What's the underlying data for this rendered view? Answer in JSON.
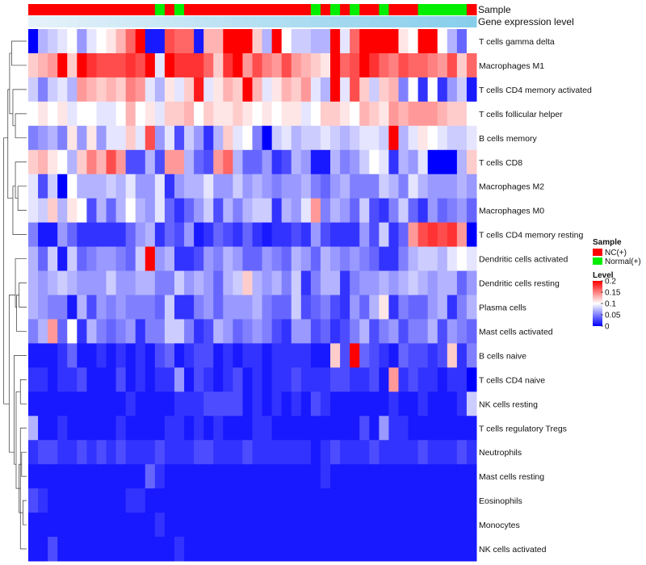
{
  "chart_data": {
    "type": "heatmap",
    "annotation_labels": {
      "sample": "Sample",
      "gene": "Gene expression level"
    },
    "legend": {
      "sample_title": "Sample",
      "sample_entries": [
        {
          "label": "NC(+)",
          "color": "#FF0000"
        },
        {
          "label": "Normal(+)",
          "color": "#00EE00"
        }
      ],
      "level_title": "Level",
      "level_ticks": [
        {
          "label": "0.2",
          "value": 0.2
        },
        {
          "label": "0.15",
          "value": 0.15
        },
        {
          "label": "0.1",
          "value": 0.1
        },
        {
          "label": "0.05",
          "value": 0.05
        },
        {
          "label": "0",
          "value": 0
        }
      ],
      "level_range": [
        0,
        0.2
      ],
      "placement": "right"
    },
    "colors": {
      "low": "#0000FF",
      "mid": "#FFFFFF",
      "high": "#FF0000",
      "nc": "#FF0000",
      "normal": "#00EE00",
      "gene_low": "#E6F2FA",
      "gene_high": "#87CEEB"
    },
    "sample_groups": [
      "NC",
      "NC",
      "NC",
      "NC",
      "NC",
      "NC",
      "NC",
      "NC",
      "NC",
      "NC",
      "NC",
      "NC",
      "NC",
      "Normal",
      "NC",
      "Normal",
      "NC",
      "NC",
      "NC",
      "NC",
      "NC",
      "NC",
      "NC",
      "NC",
      "NC",
      "NC",
      "NC",
      "NC",
      "NC",
      "Normal",
      "NC",
      "Normal",
      "NC",
      "Normal",
      "NC",
      "NC",
      "Normal",
      "NC",
      "NC",
      "NC",
      "Normal",
      "Normal",
      "Normal",
      "Normal",
      "Normal",
      "NC"
    ],
    "rows": [
      "T cells gamma delta",
      "Macrophages M1",
      "T cells CD4 memory activated",
      "T cells follicular helper",
      "B cells memory",
      "T cells CD8",
      "Macrophages M2",
      "Macrophages M0",
      "T cells CD4 memory resting",
      "Dendritic cells activated",
      "Dendritic cells resting",
      "Plasma cells",
      "Mast cells activated",
      "B cells naive",
      "T cells CD4 naive",
      "NK cells resting",
      "T cells regulatory  Tregs",
      "Neutrophils",
      "Mast cells resting",
      "Eosinophils",
      "Monocytes",
      "NK cells activated"
    ],
    "values": [
      [
        0,
        0.07,
        0.08,
        0.09,
        0.1,
        0.06,
        0.09,
        0.1,
        0.11,
        0.13,
        0.16,
        0.2,
        0.01,
        0.01,
        0.17,
        0.16,
        0.16,
        0.01,
        0.13,
        0.13,
        0.2,
        0.2,
        0.2,
        0.12,
        0.07,
        0.2,
        0.1,
        0.08,
        0.08,
        0.07,
        0.07,
        0.2,
        0.09,
        0.16,
        0.2,
        0.2,
        0.2,
        0.2,
        0.11,
        0.1,
        0.2,
        0.2,
        0.1,
        0.07,
        0.04,
        0.1
      ],
      [
        0.12,
        0.13,
        0.14,
        0.2,
        0.12,
        0.2,
        0.18,
        0.17,
        0.17,
        0.17,
        0.18,
        0.17,
        0.2,
        0.09,
        0.2,
        0.18,
        0.18,
        0.18,
        0.16,
        0.12,
        0.18,
        0.2,
        0.14,
        0.17,
        0.15,
        0.14,
        0.17,
        0.14,
        0.13,
        0.12,
        0.11,
        0.2,
        0.16,
        0.17,
        0.2,
        0.18,
        0.16,
        0.15,
        0.17,
        0.16,
        0.16,
        0.15,
        0.14,
        0.17,
        0.12,
        0.16
      ],
      [
        0.08,
        0.05,
        0.08,
        0.09,
        0.07,
        0.14,
        0.13,
        0.12,
        0.13,
        0.12,
        0.15,
        0.14,
        0.09,
        0.07,
        0.11,
        0.09,
        0.12,
        0.19,
        0.09,
        0.11,
        0.13,
        0.12,
        0.2,
        0.13,
        0.09,
        0.11,
        0.13,
        0.12,
        0.14,
        0.09,
        0.07,
        0.2,
        0.09,
        0.17,
        0.12,
        0.08,
        0.12,
        0.13,
        0.05,
        0.1,
        0.02,
        0.1,
        0.02,
        0.06,
        0.08,
        0.01
      ],
      [
        0.1,
        0.11,
        0.1,
        0.11,
        0.09,
        0.1,
        0.1,
        0.09,
        0.09,
        0.1,
        0.13,
        0.1,
        0.11,
        0.09,
        0.12,
        0.12,
        0.13,
        0.1,
        0.12,
        0.11,
        0.11,
        0.12,
        0.11,
        0.1,
        0.11,
        0.1,
        0.11,
        0.11,
        0.09,
        0.1,
        0.12,
        0.12,
        0.11,
        0.1,
        0.13,
        0.12,
        0.11,
        0.14,
        0.13,
        0.14,
        0.14,
        0.14,
        0.13,
        0.12,
        0.12,
        0.1
      ],
      [
        0.05,
        0.06,
        0.07,
        0.05,
        0.11,
        0.06,
        0.11,
        0.06,
        0.09,
        0.09,
        0.12,
        0.09,
        0.17,
        0.06,
        0.09,
        0.03,
        0.08,
        0.06,
        0.02,
        0.07,
        0.12,
        0.09,
        0.1,
        0.05,
        0.0,
        0.08,
        0.09,
        0.07,
        0.08,
        0.08,
        0.09,
        0.08,
        0.07,
        0.08,
        0.09,
        0.09,
        0.08,
        0.2,
        0.07,
        0.09,
        0.11,
        0.1,
        0.09,
        0.08,
        0.08,
        0.09
      ],
      [
        0.12,
        0.13,
        0.11,
        0.1,
        0.07,
        0.12,
        0.15,
        0.13,
        0.17,
        0.14,
        0.03,
        0.03,
        0.07,
        0.03,
        0.14,
        0.14,
        0.07,
        0.04,
        0.03,
        0.14,
        0.16,
        0.07,
        0.04,
        0.04,
        0.06,
        0.02,
        0.03,
        0.07,
        0.06,
        0.01,
        0.01,
        0.07,
        0.05,
        0.06,
        0.08,
        0.1,
        0.09,
        0.02,
        0.07,
        0.06,
        0.09,
        0.0,
        0.0,
        0.0,
        0.07,
        0.12
      ],
      [
        0.09,
        0.03,
        0.08,
        0.0,
        0.1,
        0.07,
        0.07,
        0.07,
        0.08,
        0.07,
        0.09,
        0.06,
        0.06,
        0.09,
        0.02,
        0.06,
        0.07,
        0.07,
        0.09,
        0.06,
        0.06,
        0.08,
        0.06,
        0.07,
        0.06,
        0.05,
        0.06,
        0.06,
        0.07,
        0.05,
        0.04,
        0.06,
        0.07,
        0.05,
        0.05,
        0.05,
        0.08,
        0.07,
        0.05,
        0.09,
        0.07,
        0.06,
        0.06,
        0.06,
        0.07,
        0.06
      ],
      [
        0.09,
        0.08,
        0.12,
        0.07,
        0.11,
        0.1,
        0.03,
        0.07,
        0.04,
        0.07,
        0.1,
        0.07,
        0.06,
        0.09,
        0.04,
        0.02,
        0.04,
        0.06,
        0.08,
        0.03,
        0.07,
        0.05,
        0.07,
        0.08,
        0.08,
        0.02,
        0.07,
        0.06,
        0.09,
        0.14,
        0.05,
        0.07,
        0.06,
        0.04,
        0.08,
        0.03,
        0.02,
        0.05,
        0.08,
        0.04,
        0.02,
        0.06,
        0.04,
        0.05,
        0.06,
        0.04
      ],
      [
        0.05,
        0.01,
        0.01,
        0.06,
        0.04,
        0.02,
        0.02,
        0.02,
        0.02,
        0.02,
        0.04,
        0.06,
        0.07,
        0.02,
        0.04,
        0.03,
        0.06,
        0.01,
        0.02,
        0.04,
        0.03,
        0.02,
        0.04,
        0.02,
        0.01,
        0.02,
        0.02,
        0.03,
        0.02,
        0.06,
        0.03,
        0.02,
        0.02,
        0.02,
        0.06,
        0.03,
        0.08,
        0.02,
        0.04,
        0.14,
        0.17,
        0.18,
        0.17,
        0.18,
        0.14,
        0.0
      ],
      [
        0.07,
        0.04,
        0.08,
        0.01,
        0.08,
        0.04,
        0.05,
        0.06,
        0.06,
        0.05,
        0.04,
        0.08,
        0.2,
        0.06,
        0.07,
        0.02,
        0.02,
        0.03,
        0.06,
        0.05,
        0.07,
        0.06,
        0.04,
        0.04,
        0.06,
        0.05,
        0.04,
        0.07,
        0.06,
        0.04,
        0.07,
        0.06,
        0.05,
        0.06,
        0.05,
        0.04,
        0.02,
        0.02,
        0.05,
        0.07,
        0.08,
        0.08,
        0.07,
        0.09,
        0.1,
        0.09
      ],
      [
        0.07,
        0.06,
        0.07,
        0.08,
        0.07,
        0.06,
        0.06,
        0.06,
        0.08,
        0.06,
        0.06,
        0.07,
        0.07,
        0.05,
        0.05,
        0.08,
        0.06,
        0.07,
        0.06,
        0.04,
        0.07,
        0.08,
        0.12,
        0.07,
        0.06,
        0.07,
        0.05,
        0.08,
        0.02,
        0.05,
        0.07,
        0.07,
        0.02,
        0.05,
        0.06,
        0.06,
        0.07,
        0.06,
        0.07,
        0.08,
        0.07,
        0.06,
        0.07,
        0.07,
        0.04,
        0.06
      ],
      [
        0.07,
        0.06,
        0.05,
        0.05,
        0.01,
        0.07,
        0.03,
        0.06,
        0.05,
        0.06,
        0.05,
        0.05,
        0.05,
        0.04,
        0.08,
        0.02,
        0.02,
        0.05,
        0.06,
        0.04,
        0.06,
        0.06,
        0.06,
        0.07,
        0.05,
        0.04,
        0.04,
        0.08,
        0.03,
        0.04,
        0.05,
        0.03,
        0.02,
        0.06,
        0.04,
        0.07,
        0.11,
        0.02,
        0.05,
        0.04,
        0.04,
        0.06,
        0.07,
        0.02,
        0.05,
        0.07
      ],
      [
        0.05,
        0.07,
        0.14,
        0.04,
        0.1,
        0.02,
        0.07,
        0.05,
        0.04,
        0.05,
        0.06,
        0.02,
        0.05,
        0.05,
        0.08,
        0.08,
        0.05,
        0.02,
        0.03,
        0.07,
        0.06,
        0.04,
        0.05,
        0.06,
        0.05,
        0.03,
        0.02,
        0.06,
        0.06,
        0.03,
        0.04,
        0.02,
        0.03,
        0.05,
        0.07,
        0.03,
        0.05,
        0.06,
        0.03,
        0.05,
        0.05,
        0.07,
        0.03,
        0.06,
        0.05,
        0.04
      ],
      [
        0.01,
        0.01,
        0.01,
        0.02,
        0.04,
        0.01,
        0.01,
        0.02,
        0.01,
        0.02,
        0.01,
        0.02,
        0.01,
        0.03,
        0.04,
        0.01,
        0.02,
        0.03,
        0.03,
        0.01,
        0.02,
        0.01,
        0.02,
        0.02,
        0.01,
        0.02,
        0.02,
        0.02,
        0.02,
        0.01,
        0.01,
        0.12,
        0.03,
        0.2,
        0.04,
        0.03,
        0.02,
        0.01,
        0.04,
        0.03,
        0.03,
        0.02,
        0.03,
        0.12,
        0.02,
        0.05
      ],
      [
        0.02,
        0.02,
        0.01,
        0.02,
        0.02,
        0.03,
        0.01,
        0.01,
        0.01,
        0.03,
        0.01,
        0.02,
        0.01,
        0.02,
        0.02,
        0.06,
        0.01,
        0.03,
        0.02,
        0.01,
        0.02,
        0.03,
        0.01,
        0.02,
        0.01,
        0.02,
        0.02,
        0.03,
        0.02,
        0.02,
        0.02,
        0.03,
        0.03,
        0.02,
        0.02,
        0.03,
        0.01,
        0.14,
        0.02,
        0.03,
        0.02,
        0.02,
        0.01,
        0.02,
        0.02,
        0.0
      ],
      [
        0.01,
        0.01,
        0.01,
        0.01,
        0.01,
        0.01,
        0.01,
        0.01,
        0.01,
        0.01,
        0.02,
        0.01,
        0.01,
        0.01,
        0.01,
        0.02,
        0.02,
        0.02,
        0.03,
        0.03,
        0.03,
        0.03,
        0.01,
        0.02,
        0.01,
        0.02,
        0.01,
        0.02,
        0.01,
        0.03,
        0.02,
        0.01,
        0.01,
        0.01,
        0.01,
        0.01,
        0.01,
        0.02,
        0.01,
        0.01,
        0.02,
        0.01,
        0.01,
        0.01,
        0.02,
        0.08
      ],
      [
        0.07,
        0.01,
        0.01,
        0.02,
        0.01,
        0.01,
        0.01,
        0.01,
        0.01,
        0.02,
        0.01,
        0.01,
        0.01,
        0.01,
        0.02,
        0.02,
        0.01,
        0.02,
        0.01,
        0.02,
        0.01,
        0.01,
        0.01,
        0.02,
        0.02,
        0.01,
        0.01,
        0.01,
        0.01,
        0.01,
        0.01,
        0.01,
        0.01,
        0.01,
        0.03,
        0.01,
        0.06,
        0.02,
        0.02,
        0.01,
        0.01,
        0.01,
        0.01,
        0.01,
        0.01,
        0.01
      ],
      [
        0.02,
        0.03,
        0.03,
        0.02,
        0.02,
        0.03,
        0.02,
        0.03,
        0.02,
        0.03,
        0.02,
        0.02,
        0.02,
        0.03,
        0.02,
        0.02,
        0.02,
        0.03,
        0.03,
        0.02,
        0.02,
        0.02,
        0.03,
        0.02,
        0.02,
        0.02,
        0.02,
        0.02,
        0.02,
        0.01,
        0.02,
        0.03,
        0.02,
        0.02,
        0.02,
        0.03,
        0.02,
        0.02,
        0.02,
        0.02,
        0.03,
        0.02,
        0.02,
        0.02,
        0.03,
        0.02
      ],
      [
        0.01,
        0.01,
        0.01,
        0.01,
        0.01,
        0.01,
        0.01,
        0.01,
        0.01,
        0.01,
        0.01,
        0.01,
        0.04,
        0.02,
        0.01,
        0.01,
        0.01,
        0.01,
        0.01,
        0.01,
        0.01,
        0.01,
        0.01,
        0.01,
        0.01,
        0.01,
        0.01,
        0.01,
        0.01,
        0.01,
        0.02,
        0.01,
        0.01,
        0.01,
        0.01,
        0.01,
        0.01,
        0.01,
        0.01,
        0.01,
        0.01,
        0.01,
        0.01,
        0.01,
        0.01,
        0.01
      ],
      [
        0.03,
        0.02,
        0.01,
        0.01,
        0.01,
        0.01,
        0.01,
        0.01,
        0.01,
        0.01,
        0.02,
        0.02,
        0.01,
        0.01,
        0.01,
        0.01,
        0.01,
        0.01,
        0.01,
        0.01,
        0.01,
        0.01,
        0.01,
        0.01,
        0.01,
        0.01,
        0.01,
        0.01,
        0.01,
        0.01,
        0.01,
        0.01,
        0.01,
        0.01,
        0.01,
        0.01,
        0.01,
        0.01,
        0.01,
        0.01,
        0.01,
        0.01,
        0.01,
        0.01,
        0.01,
        0.01
      ],
      [
        0.01,
        0.01,
        0.01,
        0.01,
        0.01,
        0.01,
        0.01,
        0.01,
        0.01,
        0.01,
        0.01,
        0.01,
        0.01,
        0.02,
        0.01,
        0.01,
        0.01,
        0.01,
        0.01,
        0.01,
        0.01,
        0.01,
        0.01,
        0.01,
        0.01,
        0.01,
        0.01,
        0.01,
        0.01,
        0.01,
        0.01,
        0.01,
        0.01,
        0.01,
        0.01,
        0.01,
        0.01,
        0.01,
        0.01,
        0.01,
        0.01,
        0.01,
        0.01,
        0.01,
        0.01,
        0.01
      ],
      [
        0.01,
        0.01,
        0.03,
        0.01,
        0.01,
        0.01,
        0.01,
        0.01,
        0.01,
        0.01,
        0.01,
        0.01,
        0.01,
        0.01,
        0.01,
        0.02,
        0.01,
        0.01,
        0.01,
        0.01,
        0.01,
        0.01,
        0.01,
        0.01,
        0.01,
        0.01,
        0.01,
        0.01,
        0.01,
        0.01,
        0.01,
        0.01,
        0.01,
        0.01,
        0.01,
        0.01,
        0.01,
        0.01,
        0.01,
        0.01,
        0.01,
        0.01,
        0.01,
        0.01,
        0.01,
        0.01
      ]
    ]
  }
}
